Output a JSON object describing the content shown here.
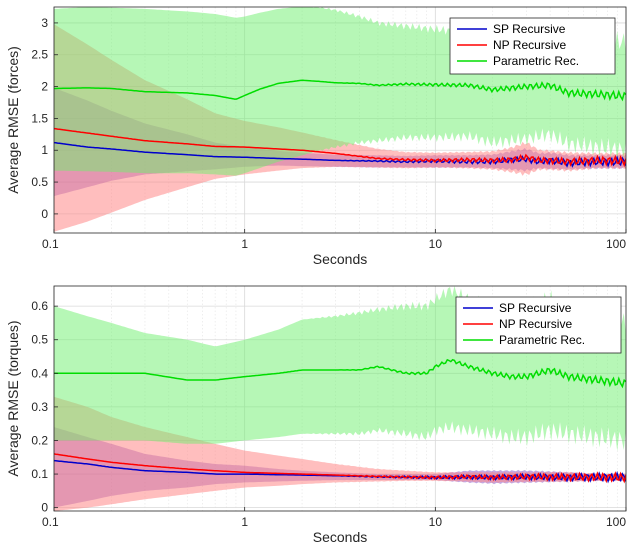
{
  "chart_data": [
    {
      "type": "line",
      "name": "forces",
      "xlabel": "Seconds",
      "ylabel": "Average RMSE (forces)",
      "xscale": "log",
      "xlim": [
        0.1,
        100
      ],
      "ylim": [
        -0.3,
        3.25
      ],
      "xticks": [
        0.1,
        1,
        10,
        100
      ],
      "xtick_labels": [
        "0.1",
        "1",
        "10",
        "100"
      ],
      "yticks": [
        0,
        0.5,
        1,
        1.5,
        2,
        2.5,
        3
      ],
      "ytick_labels": [
        "0",
        "0.5",
        "1",
        "1.5",
        "2",
        "2.5",
        "3"
      ],
      "grid": true,
      "legend_position": "top-right",
      "series": [
        {
          "name": "SP Recursive",
          "color": "#0000cc",
          "band_color": "#7a3fbf",
          "band_opacity": 0.45,
          "x": [
            0.1,
            0.15,
            0.2,
            0.3,
            0.5,
            0.7,
            1,
            1.5,
            2,
            3,
            5,
            7,
            10,
            15,
            20,
            25,
            30,
            35,
            40,
            50,
            70,
            100
          ],
          "values": [
            1.12,
            1.05,
            1.02,
            0.97,
            0.93,
            0.9,
            0.89,
            0.87,
            0.86,
            0.84,
            0.83,
            0.82,
            0.83,
            0.82,
            0.82,
            0.85,
            0.86,
            0.82,
            0.84,
            0.8,
            0.82,
            0.82
          ],
          "lower": [
            0.28,
            0.42,
            0.52,
            0.62,
            0.67,
            0.7,
            0.74,
            0.76,
            0.75,
            0.74,
            0.73,
            0.73,
            0.73,
            0.73,
            0.72,
            0.7,
            0.68,
            0.72,
            0.71,
            0.7,
            0.72,
            0.72
          ],
          "upper": [
            1.98,
            1.78,
            1.62,
            1.42,
            1.25,
            1.12,
            1.05,
            0.99,
            0.96,
            0.93,
            0.92,
            0.91,
            0.92,
            0.92,
            0.93,
            0.98,
            1.02,
            0.95,
            0.96,
            0.92,
            0.92,
            0.92
          ]
        },
        {
          "name": "NP Recursive",
          "color": "#ff0000",
          "band_color": "#ff8888",
          "band_opacity": 0.55,
          "x": [
            0.1,
            0.15,
            0.2,
            0.3,
            0.5,
            0.7,
            1,
            1.5,
            2,
            3,
            5,
            7,
            10,
            15,
            20,
            25,
            30,
            35,
            40,
            50,
            70,
            100
          ],
          "values": [
            1.34,
            1.27,
            1.22,
            1.15,
            1.1,
            1.06,
            1.05,
            1.02,
            1.0,
            0.95,
            0.87,
            0.85,
            0.84,
            0.85,
            0.84,
            0.85,
            0.89,
            0.84,
            0.84,
            0.82,
            0.84,
            0.83
          ],
          "lower": [
            -0.28,
            -0.12,
            0.02,
            0.22,
            0.42,
            0.55,
            0.62,
            0.68,
            0.72,
            0.74,
            0.73,
            0.72,
            0.73,
            0.72,
            0.7,
            0.66,
            0.62,
            0.7,
            0.7,
            0.68,
            0.72,
            0.72
          ],
          "upper": [
            2.98,
            2.66,
            2.42,
            2.1,
            1.8,
            1.58,
            1.46,
            1.36,
            1.28,
            1.16,
            1.02,
            0.97,
            0.96,
            0.97,
            0.98,
            1.04,
            1.12,
            1.0,
            0.99,
            0.96,
            0.95,
            0.95
          ]
        },
        {
          "name": "Parametric Rec.",
          "color": "#00dd00",
          "band_color": "#6ef06e",
          "band_opacity": 0.5,
          "x": [
            0.1,
            0.15,
            0.2,
            0.3,
            0.5,
            0.7,
            0.9,
            1,
            1.2,
            1.5,
            2,
            2.5,
            3,
            4,
            5,
            7,
            10,
            15,
            20,
            30,
            40,
            50,
            70,
            100
          ],
          "values": [
            1.97,
            1.98,
            1.97,
            1.92,
            1.9,
            1.86,
            1.8,
            1.86,
            1.96,
            2.05,
            2.1,
            2.08,
            2.06,
            2.05,
            2.02,
            2.04,
            2.03,
            2.02,
            1.95,
            2.0,
            2.02,
            1.9,
            1.88,
            1.85
          ],
          "lower": [
            0.68,
            0.67,
            0.66,
            0.64,
            0.64,
            0.62,
            0.6,
            0.64,
            0.72,
            0.82,
            0.92,
            1.0,
            1.05,
            1.12,
            1.15,
            1.2,
            1.2,
            1.22,
            1.12,
            1.18,
            1.25,
            1.1,
            1.05,
            1.0
          ],
          "upper": [
            3.22,
            3.25,
            3.24,
            3.22,
            3.18,
            3.14,
            3.08,
            3.1,
            3.16,
            3.22,
            3.26,
            3.24,
            3.2,
            3.1,
            3.0,
            2.95,
            2.9,
            2.85,
            2.8,
            2.82,
            2.85,
            2.74,
            2.72,
            2.7
          ]
        }
      ]
    },
    {
      "type": "line",
      "name": "torques",
      "xlabel": "Seconds",
      "ylabel": "Average RMSE (torques)",
      "xscale": "log",
      "xlim": [
        0.1,
        100
      ],
      "ylim": [
        -0.01,
        0.66
      ],
      "xticks": [
        0.1,
        1,
        10,
        100
      ],
      "xtick_labels": [
        "0.1",
        "1",
        "10",
        "100"
      ],
      "yticks": [
        0,
        0.1,
        0.2,
        0.3,
        0.4,
        0.5,
        0.6
      ],
      "ytick_labels": [
        "0",
        "0.1",
        "0.2",
        "0.3",
        "0.4",
        "0.5",
        "0.6"
      ],
      "grid": true,
      "legend_position": "top-right",
      "series": [
        {
          "name": "SP Recursive",
          "color": "#0000cc",
          "band_color": "#7a3fbf",
          "band_opacity": 0.45,
          "x": [
            0.1,
            0.15,
            0.2,
            0.3,
            0.5,
            0.7,
            1,
            1.5,
            2,
            3,
            5,
            7,
            10,
            15,
            20,
            30,
            50,
            70,
            100
          ],
          "values": [
            0.14,
            0.13,
            0.12,
            0.11,
            0.105,
            0.1,
            0.1,
            0.098,
            0.097,
            0.095,
            0.092,
            0.091,
            0.09,
            0.091,
            0.09,
            0.092,
            0.09,
            0.091,
            0.09
          ],
          "lower": [
            0.0,
            0.02,
            0.035,
            0.05,
            0.06,
            0.07,
            0.075,
            0.078,
            0.08,
            0.082,
            0.082,
            0.082,
            0.082,
            0.075,
            0.072,
            0.075,
            0.078,
            0.08,
            0.08
          ],
          "upper": [
            0.24,
            0.21,
            0.19,
            0.16,
            0.14,
            0.13,
            0.125,
            0.115,
            0.11,
            0.105,
            0.1,
            0.1,
            0.1,
            0.11,
            0.11,
            0.11,
            0.105,
            0.1,
            0.1
          ]
        },
        {
          "name": "NP Recursive",
          "color": "#ff0000",
          "band_color": "#ff8888",
          "band_opacity": 0.55,
          "x": [
            0.1,
            0.15,
            0.2,
            0.3,
            0.5,
            0.7,
            1,
            1.5,
            2,
            3,
            5,
            7,
            10,
            15,
            20,
            30,
            50,
            70,
            100
          ],
          "values": [
            0.16,
            0.145,
            0.135,
            0.125,
            0.115,
            0.11,
            0.105,
            0.102,
            0.1,
            0.097,
            0.093,
            0.091,
            0.09,
            0.092,
            0.09,
            0.092,
            0.091,
            0.091,
            0.09
          ],
          "lower": [
            -0.01,
            0.0,
            0.01,
            0.025,
            0.04,
            0.05,
            0.06,
            0.065,
            0.07,
            0.075,
            0.078,
            0.08,
            0.08,
            0.078,
            0.075,
            0.077,
            0.078,
            0.08,
            0.08
          ],
          "upper": [
            0.33,
            0.3,
            0.27,
            0.24,
            0.21,
            0.19,
            0.17,
            0.155,
            0.145,
            0.13,
            0.115,
            0.11,
            0.105,
            0.105,
            0.105,
            0.105,
            0.105,
            0.1,
            0.1
          ]
        },
        {
          "name": "Parametric Rec.",
          "color": "#00dd00",
          "band_color": "#6ef06e",
          "band_opacity": 0.5,
          "x": [
            0.1,
            0.15,
            0.2,
            0.3,
            0.5,
            0.7,
            1,
            1.5,
            2,
            3,
            4,
            5,
            7,
            9,
            10,
            12,
            15,
            20,
            25,
            30,
            40,
            50,
            70,
            100
          ],
          "values": [
            0.4,
            0.4,
            0.4,
            0.4,
            0.38,
            0.38,
            0.39,
            0.4,
            0.41,
            0.41,
            0.41,
            0.42,
            0.4,
            0.4,
            0.42,
            0.44,
            0.42,
            0.4,
            0.39,
            0.39,
            0.41,
            0.39,
            0.38,
            0.37
          ],
          "lower": [
            0.2,
            0.2,
            0.2,
            0.2,
            0.19,
            0.19,
            0.2,
            0.21,
            0.22,
            0.22,
            0.22,
            0.23,
            0.22,
            0.21,
            0.23,
            0.24,
            0.23,
            0.22,
            0.21,
            0.21,
            0.23,
            0.22,
            0.21,
            0.2
          ],
          "upper": [
            0.6,
            0.57,
            0.55,
            0.52,
            0.5,
            0.48,
            0.5,
            0.53,
            0.56,
            0.57,
            0.58,
            0.59,
            0.6,
            0.6,
            0.62,
            0.65,
            0.62,
            0.6,
            0.59,
            0.6,
            0.62,
            0.58,
            0.56,
            0.55
          ]
        }
      ]
    }
  ]
}
